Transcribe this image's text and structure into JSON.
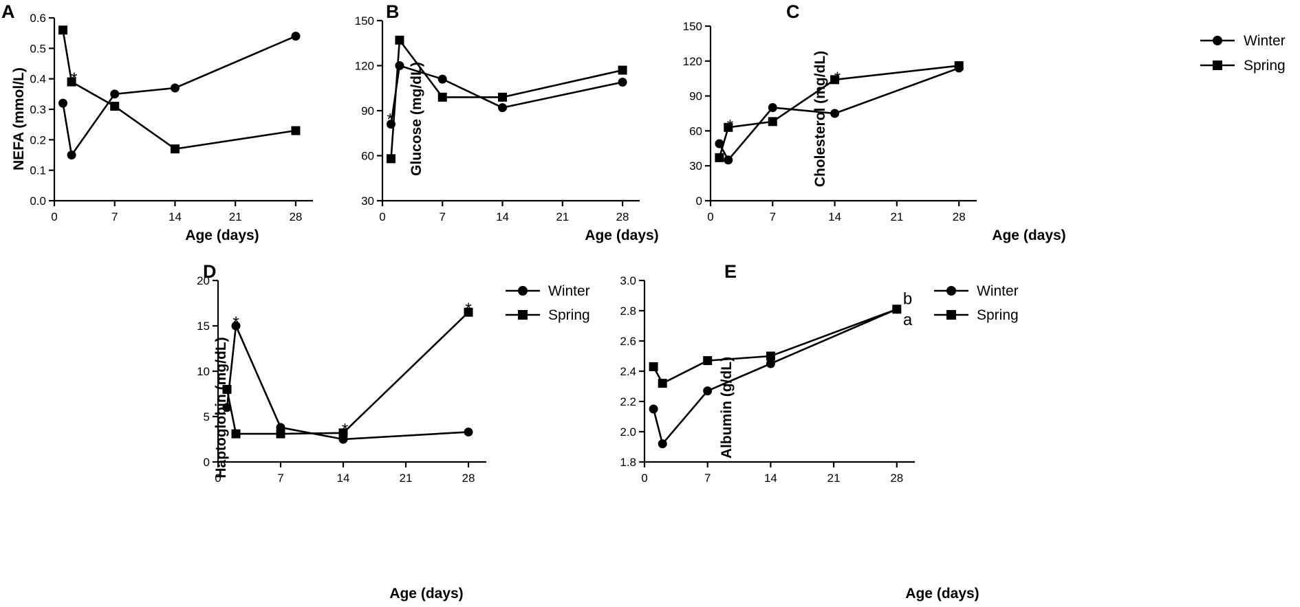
{
  "legend": {
    "winter": "Winter",
    "spring": "Spring"
  },
  "chart_data": [
    {
      "panel": "A",
      "type": "line",
      "xlabel": "Age (days)",
      "ylabel": "NEFA (mmol/L)",
      "xlim": [
        0,
        30
      ],
      "ylim": [
        0.0,
        0.6
      ],
      "xticks": [
        0,
        7,
        14,
        21,
        28
      ],
      "yticks": [
        0.0,
        0.1,
        0.2,
        0.3,
        0.4,
        0.5,
        0.6
      ],
      "ytick_labels": [
        "0.0",
        "0.1",
        "0.2",
        "0.3",
        "0.4",
        "0.5",
        "0.6"
      ],
      "series": [
        {
          "name": "Winter",
          "marker": "circle",
          "x": [
            1,
            2,
            7,
            14,
            28
          ],
          "y": [
            0.32,
            0.15,
            0.35,
            0.37,
            0.54
          ]
        },
        {
          "name": "Spring",
          "marker": "square",
          "x": [
            1,
            2,
            7,
            14,
            28
          ],
          "y": [
            0.56,
            0.39,
            0.31,
            0.17,
            0.23
          ]
        }
      ],
      "annotations": [
        {
          "text": "*",
          "x": 2.3,
          "y": 0.41
        }
      ]
    },
    {
      "panel": "B",
      "type": "line",
      "xlabel": "Age (days)",
      "ylabel": "Glucose (mg/dL)",
      "xlim": [
        0,
        30
      ],
      "ylim": [
        30,
        150
      ],
      "xticks": [
        0,
        7,
        14,
        21,
        28
      ],
      "yticks": [
        30,
        60,
        90,
        120,
        150
      ],
      "ytick_labels": [
        "30",
        "60",
        "90",
        "120",
        "150"
      ],
      "series": [
        {
          "name": "Winter",
          "marker": "circle",
          "x": [
            1,
            2,
            7,
            14,
            28
          ],
          "y": [
            81,
            120,
            111,
            92,
            109
          ]
        },
        {
          "name": "Spring",
          "marker": "square",
          "x": [
            1,
            2,
            7,
            14,
            28
          ],
          "y": [
            58,
            137,
            99,
            99,
            117
          ]
        }
      ],
      "annotations": [
        {
          "text": "*",
          "x": 0.9,
          "y": 86
        }
      ]
    },
    {
      "panel": "C",
      "type": "line",
      "xlabel": "Age (days)",
      "ylabel": "Cholesterol (mg/dL)",
      "xlim": [
        0,
        30
      ],
      "ylim": [
        0,
        150
      ],
      "xticks": [
        0,
        7,
        14,
        21,
        28
      ],
      "yticks": [
        0,
        30,
        60,
        90,
        120,
        150
      ],
      "ytick_labels": [
        "0",
        "30",
        "60",
        "90",
        "120",
        "150"
      ],
      "series": [
        {
          "name": "Winter",
          "marker": "circle",
          "x": [
            1,
            2,
            7,
            14,
            28
          ],
          "y": [
            49,
            35,
            80,
            75,
            114
          ]
        },
        {
          "name": "Spring",
          "marker": "square",
          "x": [
            1,
            2,
            7,
            14,
            28
          ],
          "y": [
            37,
            63,
            68,
            104,
            116
          ]
        }
      ],
      "annotations": [
        {
          "text": "*",
          "x": 2.2,
          "y": 67
        },
        {
          "text": "*",
          "x": 14.3,
          "y": 108
        }
      ]
    },
    {
      "panel": "D",
      "type": "line",
      "xlabel": "Age (days)",
      "ylabel": "Haptoglobin (mg/dL)",
      "xlim": [
        0,
        30
      ],
      "ylim": [
        0,
        20
      ],
      "xticks": [
        0,
        7,
        14,
        21,
        28
      ],
      "yticks": [
        0,
        5,
        10,
        15,
        20
      ],
      "ytick_labels": [
        "0",
        "5",
        "10",
        "15",
        "20"
      ],
      "series": [
        {
          "name": "Winter",
          "marker": "circle",
          "x": [
            1,
            2,
            7,
            14,
            28
          ],
          "y": [
            6,
            15,
            3.8,
            2.5,
            3.3
          ]
        },
        {
          "name": "Spring",
          "marker": "square",
          "x": [
            1,
            2,
            7,
            14,
            28
          ],
          "y": [
            8,
            3.1,
            3.1,
            3.2,
            16.5
          ]
        }
      ],
      "annotations": [
        {
          "text": "*",
          "x": 2.0,
          "y": 15.7
        },
        {
          "text": "*",
          "x": 14.2,
          "y": 3.9
        },
        {
          "text": "*",
          "x": 28.0,
          "y": 17.2
        }
      ]
    },
    {
      "panel": "E",
      "type": "line",
      "xlabel": "Age (days)",
      "ylabel": "Albumin (g/dL)",
      "xlim": [
        0,
        30
      ],
      "ylim": [
        1.8,
        3.0
      ],
      "xticks": [
        0,
        7,
        14,
        21,
        28
      ],
      "yticks": [
        1.8,
        2.0,
        2.2,
        2.4,
        2.6,
        2.8,
        3.0
      ],
      "ytick_labels": [
        "1.8",
        "2.0",
        "2.2",
        "2.4",
        "2.6",
        "2.8",
        "3.0"
      ],
      "series": [
        {
          "name": "Winter",
          "marker": "circle",
          "x": [
            1,
            2,
            7,
            14,
            28
          ],
          "y": [
            2.15,
            1.92,
            2.27,
            2.45,
            2.81
          ]
        },
        {
          "name": "Spring",
          "marker": "square",
          "x": [
            1,
            2,
            7,
            14,
            28
          ],
          "y": [
            2.43,
            2.32,
            2.47,
            2.5,
            2.81
          ]
        }
      ],
      "annotations": [
        {
          "text": "b",
          "x": 29.2,
          "y": 2.88
        },
        {
          "text": "a",
          "x": 29.2,
          "y": 2.74
        }
      ]
    }
  ]
}
